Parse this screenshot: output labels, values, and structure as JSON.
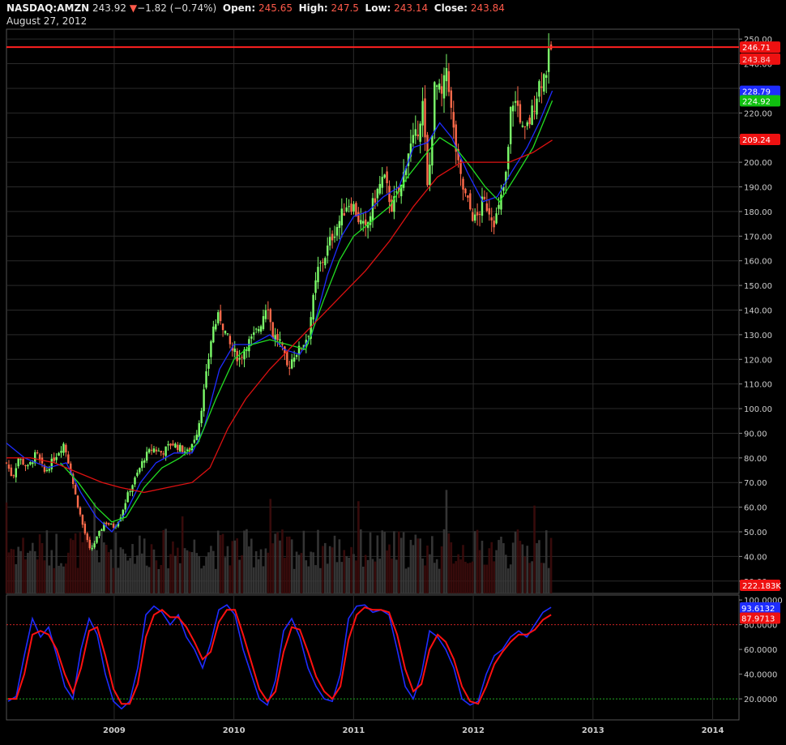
{
  "header": {
    "symbol": "NASDAQ:AMZN",
    "last": "243.92",
    "change_arrow": "▼",
    "change": "−1.82 (−0.74%)",
    "open_label": "Open:",
    "open": "245.65",
    "high_label": "High:",
    "high": "247.5",
    "low_label": "Low:",
    "low": "243.14",
    "close_label": "Close:",
    "close": "243.84",
    "date": "August 27, 2012"
  },
  "colors": {
    "background": "#000000",
    "grid": "#2a2a2a",
    "up_candle": "#7cfc6a",
    "down_candle": "#ff6a4a",
    "ma_blue": "#1e2cff",
    "ma_green": "#22dd22",
    "ma_red": "#dd1111",
    "resistance": "#ff2020",
    "stoch_k": "#1e2cff",
    "stoch_d": "#ff1010"
  },
  "chart_data": [
    {
      "type": "candlestick",
      "panel": "price",
      "y_ticks": [
        "250.00",
        "240.00",
        "230.00",
        "220.00",
        "210.00",
        "200.00",
        "190.00",
        "180.00",
        "170.00",
        "160.00",
        "150.00",
        "140.00",
        "130.00",
        "120.00",
        "110.00",
        "100.00",
        "90.00",
        "80.00",
        "70.00",
        "60.00",
        "50.00",
        "40.00",
        "30.00"
      ],
      "ylim": [
        25,
        254
      ],
      "x_ticks": [
        "2009",
        "2010",
        "2011",
        "2012",
        "2013",
        "2014"
      ],
      "xlim": [
        2008.1,
        2014.22
      ],
      "series": [
        {
          "name": "price",
          "points": [
            [
              2008.1,
              78
            ],
            [
              2008.15,
              72
            ],
            [
              2008.2,
              80
            ],
            [
              2008.28,
              76
            ],
            [
              2008.35,
              82
            ],
            [
              2008.42,
              74
            ],
            [
              2008.5,
              80
            ],
            [
              2008.58,
              86
            ],
            [
              2008.62,
              78
            ],
            [
              2008.68,
              64
            ],
            [
              2008.74,
              52
            ],
            [
              2008.8,
              42
            ],
            [
              2008.86,
              48
            ],
            [
              2008.92,
              54
            ],
            [
              2009.0,
              52
            ],
            [
              2009.05,
              56
            ],
            [
              2009.12,
              66
            ],
            [
              2009.18,
              72
            ],
            [
              2009.25,
              80
            ],
            [
              2009.32,
              84
            ],
            [
              2009.4,
              82
            ],
            [
              2009.48,
              86
            ],
            [
              2009.55,
              84
            ],
            [
              2009.62,
              82
            ],
            [
              2009.7,
              92
            ],
            [
              2009.76,
              110
            ],
            [
              2009.82,
              132
            ],
            [
              2009.88,
              138
            ],
            [
              2009.92,
              132
            ],
            [
              2009.98,
              124
            ],
            [
              2010.05,
              120
            ],
            [
              2010.1,
              126
            ],
            [
              2010.15,
              128
            ],
            [
              2010.22,
              134
            ],
            [
              2010.28,
              144
            ],
            [
              2010.32,
              130
            ],
            [
              2010.38,
              128
            ],
            [
              2010.45,
              116
            ],
            [
              2010.5,
              122
            ],
            [
              2010.55,
              124
            ],
            [
              2010.62,
              130
            ],
            [
              2010.7,
              156
            ],
            [
              2010.76,
              162
            ],
            [
              2010.82,
              170
            ],
            [
              2010.88,
              176
            ],
            [
              2010.95,
              184
            ],
            [
              2011.0,
              182
            ],
            [
              2011.05,
              176
            ],
            [
              2011.1,
              172
            ],
            [
              2011.18,
              186
            ],
            [
              2011.25,
              194
            ],
            [
              2011.32,
              182
            ],
            [
              2011.4,
              190
            ],
            [
              2011.45,
              204
            ],
            [
              2011.52,
              210
            ],
            [
              2011.58,
              224
            ],
            [
              2011.62,
              186
            ],
            [
              2011.68,
              232
            ],
            [
              2011.74,
              226
            ],
            [
              2011.78,
              240
            ],
            [
              2011.82,
              218
            ],
            [
              2011.88,
              196
            ],
            [
              2011.92,
              188
            ],
            [
              2011.98,
              180
            ],
            [
              2012.02,
              176
            ],
            [
              2012.08,
              184
            ],
            [
              2012.12,
              182
            ],
            [
              2012.18,
              176
            ],
            [
              2012.22,
              182
            ],
            [
              2012.28,
              196
            ],
            [
              2012.32,
              226
            ],
            [
              2012.38,
              222
            ],
            [
              2012.42,
              210
            ],
            [
              2012.48,
              218
            ],
            [
              2012.55,
              232
            ],
            [
              2012.6,
              236
            ],
            [
              2012.65,
              246
            ]
          ]
        },
        {
          "name": "MA blue",
          "last_label": "228.79",
          "points": [
            [
              2008.1,
              86
            ],
            [
              2008.25,
              80
            ],
            [
              2008.45,
              76
            ],
            [
              2008.6,
              78
            ],
            [
              2008.72,
              66
            ],
            [
              2008.85,
              56
            ],
            [
              2008.98,
              50
            ],
            [
              2009.1,
              58
            ],
            [
              2009.22,
              70
            ],
            [
              2009.35,
              78
            ],
            [
              2009.5,
              82
            ],
            [
              2009.65,
              82
            ],
            [
              2009.75,
              92
            ],
            [
              2009.88,
              116
            ],
            [
              2010.0,
              126
            ],
            [
              2010.15,
              126
            ],
            [
              2010.3,
              130
            ],
            [
              2010.42,
              124
            ],
            [
              2010.55,
              122
            ],
            [
              2010.65,
              130
            ],
            [
              2010.78,
              154
            ],
            [
              2010.9,
              170
            ],
            [
              2011.0,
              178
            ],
            [
              2011.12,
              180
            ],
            [
              2011.25,
              186
            ],
            [
              2011.38,
              190
            ],
            [
              2011.5,
              206
            ],
            [
              2011.62,
              208
            ],
            [
              2011.72,
              216
            ],
            [
              2011.82,
              210
            ],
            [
              2011.95,
              196
            ],
            [
              2012.08,
              184
            ],
            [
              2012.2,
              186
            ],
            [
              2012.32,
              196
            ],
            [
              2012.45,
              206
            ],
            [
              2012.55,
              216
            ],
            [
              2012.66,
              229
            ]
          ]
        },
        {
          "name": "MA green",
          "last_label": "224.92",
          "points": [
            [
              2008.55,
              78
            ],
            [
              2008.7,
              70
            ],
            [
              2008.85,
              60
            ],
            [
              2008.98,
              54
            ],
            [
              2009.1,
              56
            ],
            [
              2009.25,
              68
            ],
            [
              2009.4,
              76
            ],
            [
              2009.55,
              80
            ],
            [
              2009.7,
              86
            ],
            [
              2009.85,
              104
            ],
            [
              2010.0,
              120
            ],
            [
              2010.15,
              126
            ],
            [
              2010.3,
              128
            ],
            [
              2010.45,
              126
            ],
            [
              2010.6,
              124
            ],
            [
              2010.75,
              144
            ],
            [
              2010.88,
              160
            ],
            [
              2011.0,
              170
            ],
            [
              2011.15,
              176
            ],
            [
              2011.3,
              182
            ],
            [
              2011.45,
              194
            ],
            [
              2011.58,
              202
            ],
            [
              2011.72,
              210
            ],
            [
              2011.85,
              206
            ],
            [
              2011.98,
              198
            ],
            [
              2012.1,
              190
            ],
            [
              2012.22,
              184
            ],
            [
              2012.35,
              194
            ],
            [
              2012.5,
              206
            ],
            [
              2012.66,
              225
            ]
          ]
        },
        {
          "name": "MA red",
          "last_label": "209.24",
          "points": [
            [
              2008.1,
              80
            ],
            [
              2008.3,
              80
            ],
            [
              2008.5,
              78
            ],
            [
              2008.7,
              74
            ],
            [
              2008.9,
              70
            ],
            [
              2009.05,
              68
            ],
            [
              2009.25,
              66
            ],
            [
              2009.45,
              68
            ],
            [
              2009.65,
              70
            ],
            [
              2009.8,
              76
            ],
            [
              2009.95,
              92
            ],
            [
              2010.1,
              104
            ],
            [
              2010.3,
              116
            ],
            [
              2010.5,
              126
            ],
            [
              2010.7,
              136
            ],
            [
              2010.9,
              146
            ],
            [
              2011.1,
              156
            ],
            [
              2011.3,
              168
            ],
            [
              2011.5,
              182
            ],
            [
              2011.7,
              194
            ],
            [
              2011.9,
              200
            ],
            [
              2012.1,
              200
            ],
            [
              2012.3,
              200
            ],
            [
              2012.5,
              204
            ],
            [
              2012.66,
              209
            ]
          ]
        }
      ],
      "resistance": 246.71,
      "resistance_label": "246.71",
      "close_label": "243.84",
      "volume_label": "222.183K"
    },
    {
      "type": "line",
      "panel": "stochastic",
      "y_ticks": [
        "100.0000",
        "80.0000",
        "60.0000",
        "40.0000",
        "20.0000"
      ],
      "ylim": [
        3,
        104
      ],
      "levels": [
        80,
        20
      ],
      "series": [
        {
          "name": "K",
          "last_label": "93.6132",
          "values": [
            18,
            22,
            55,
            85,
            70,
            78,
            55,
            30,
            20,
            60,
            85,
            72,
            40,
            18,
            12,
            18,
            45,
            88,
            95,
            90,
            80,
            88,
            70,
            60,
            45,
            65,
            92,
            96,
            88,
            60,
            40,
            20,
            15,
            35,
            75,
            85,
            70,
            45,
            30,
            20,
            18,
            40,
            85,
            95,
            96,
            90,
            92,
            88,
            60,
            30,
            20,
            40,
            75,
            70,
            60,
            45,
            20,
            15,
            18,
            40,
            55,
            60,
            70,
            75,
            70,
            80,
            90,
            94
          ]
        },
        {
          "name": "D",
          "last_label": "87.9713",
          "values": [
            20,
            20,
            40,
            72,
            75,
            72,
            60,
            40,
            25,
            45,
            75,
            78,
            55,
            28,
            16,
            16,
            32,
            70,
            88,
            92,
            86,
            86,
            78,
            66,
            52,
            58,
            82,
            92,
            92,
            72,
            50,
            28,
            18,
            26,
            58,
            78,
            76,
            58,
            38,
            26,
            20,
            30,
            68,
            88,
            94,
            92,
            92,
            90,
            72,
            44,
            26,
            32,
            60,
            72,
            66,
            52,
            30,
            18,
            16,
            30,
            48,
            58,
            66,
            72,
            72,
            76,
            84,
            88
          ]
        }
      ]
    }
  ]
}
